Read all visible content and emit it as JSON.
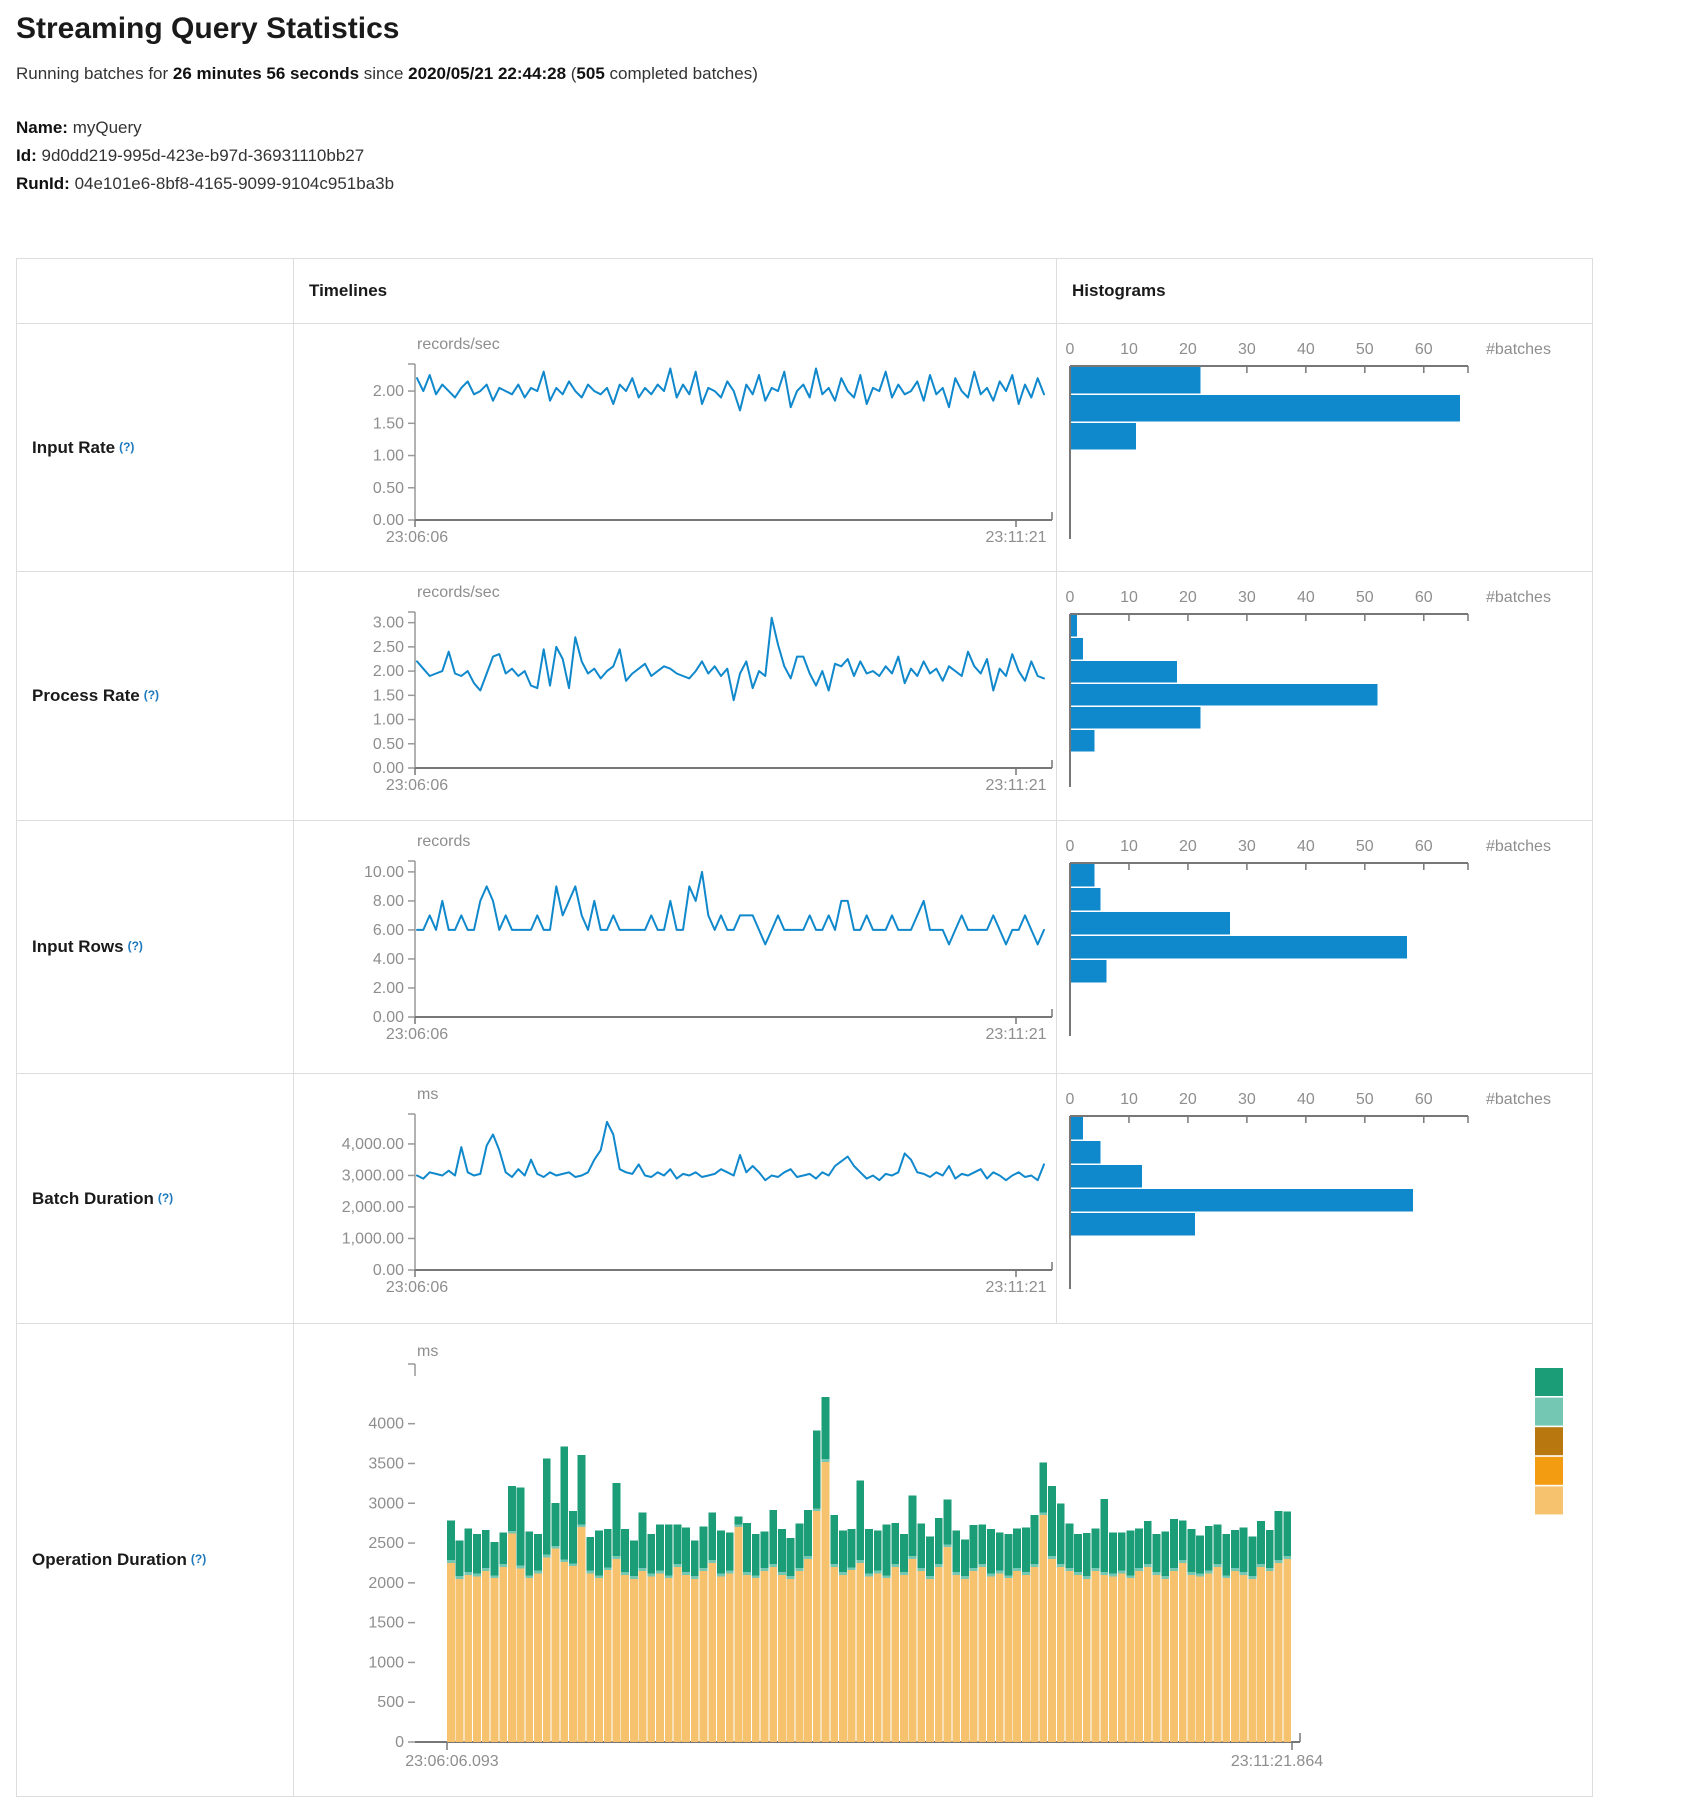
{
  "page": {
    "title": "Streaming Query Statistics"
  },
  "subtitle": {
    "prefix": "Running batches for ",
    "duration": "26 minutes 56 seconds",
    "mid": " since ",
    "start_time": "2020/05/21 22:44:28",
    "paren_open": " (",
    "batches_count": "505",
    "suffix": " completed batches)"
  },
  "meta": {
    "name_label": "Name:",
    "name": "myQuery",
    "id_label": "Id:",
    "id": "9d0dd219-995d-423e-b97d-36931110bb27",
    "runid_label": "RunId:",
    "runid": "04e101e6-8bf8-4165-9099-9104c951ba3b"
  },
  "table": {
    "col_timelines": "Timelines",
    "col_histograms": "Histograms",
    "help_marker": "(?)",
    "rows": [
      {
        "label": "Input Rate"
      },
      {
        "label": "Process Rate"
      },
      {
        "label": "Input Rows"
      },
      {
        "label": "Batch Duration"
      },
      {
        "label": "Operation Duration"
      }
    ]
  },
  "chart_data": [
    {
      "type": "line",
      "name": "input-rate-timeline",
      "unit": "records/sec",
      "x_start": "23:06:06",
      "x_end": "23:11:21",
      "ylim": [
        0,
        2.42
      ],
      "color": "#1088cc",
      "grid": false,
      "yticks": [
        {
          "v": 2,
          "label": "2.00"
        },
        {
          "v": 1.5,
          "label": "1.50"
        },
        {
          "v": 1,
          "label": "1.00"
        },
        {
          "v": 0.5,
          "label": "0.50"
        },
        {
          "v": 0,
          "label": "0.00"
        }
      ],
      "values": [
        2.2,
        2.0,
        2.25,
        1.95,
        2.1,
        2.0,
        1.9,
        2.05,
        2.15,
        1.95,
        2.0,
        2.1,
        1.85,
        2.05,
        2.0,
        1.95,
        2.1,
        1.9,
        2.05,
        2.0,
        2.3,
        1.85,
        2.05,
        1.95,
        2.15,
        2.0,
        1.9,
        2.1,
        2.0,
        1.95,
        2.05,
        1.8,
        2.1,
        2.0,
        2.2,
        1.9,
        2.05,
        1.95,
        2.1,
        2.0,
        2.35,
        1.9,
        2.1,
        1.95,
        2.3,
        1.8,
        2.05,
        2.0,
        1.9,
        2.15,
        2.0,
        1.7,
        2.1,
        1.95,
        2.25,
        1.85,
        2.05,
        2.0,
        2.3,
        1.75,
        2.0,
        2.1,
        1.9,
        2.35,
        1.95,
        2.05,
        1.85,
        2.2,
        2.0,
        1.9,
        2.25,
        1.8,
        2.05,
        2.0,
        2.3,
        1.9,
        2.1,
        1.95,
        2.0,
        2.15,
        1.85,
        2.25,
        1.95,
        2.05,
        1.75,
        2.2,
        2.0,
        1.9,
        2.3,
        1.95,
        2.05,
        1.85,
        2.15,
        2.0,
        2.25,
        1.8,
        2.1,
        1.9,
        2.2,
        1.95
      ]
    },
    {
      "type": "bar",
      "name": "input-rate-histogram",
      "orientation": "horizontal",
      "xlabel": "#batches",
      "xticks": [
        0,
        10,
        20,
        30,
        40,
        50,
        60
      ],
      "xlim": [
        0,
        67.5
      ],
      "color": "#1088cc",
      "bins": [
        22,
        66,
        11
      ]
    },
    {
      "type": "line",
      "name": "process-rate-timeline",
      "unit": "records/sec",
      "x_start": "23:06:06",
      "x_end": "23:11:21",
      "ylim": [
        0,
        3.22
      ],
      "color": "#1088cc",
      "grid": false,
      "yticks": [
        {
          "v": 3,
          "label": "3.00"
        },
        {
          "v": 2.5,
          "label": "2.50"
        },
        {
          "v": 2,
          "label": "2.00"
        },
        {
          "v": 1.5,
          "label": "1.50"
        },
        {
          "v": 1,
          "label": "1.00"
        },
        {
          "v": 0.5,
          "label": "0.50"
        },
        {
          "v": 0,
          "label": "0.00"
        }
      ],
      "values": [
        2.2,
        2.05,
        1.9,
        1.95,
        2.0,
        2.4,
        1.95,
        1.9,
        2.0,
        1.75,
        1.6,
        1.95,
        2.3,
        2.35,
        1.95,
        2.05,
        1.9,
        2.0,
        1.7,
        1.65,
        2.45,
        1.7,
        2.5,
        2.25,
        1.65,
        2.7,
        2.2,
        1.95,
        2.05,
        1.85,
        2.0,
        2.1,
        2.45,
        1.8,
        1.95,
        2.05,
        2.15,
        1.9,
        2.0,
        2.1,
        2.05,
        1.95,
        1.9,
        1.85,
        2.0,
        2.2,
        1.95,
        2.1,
        1.9,
        2.05,
        1.4,
        1.95,
        2.2,
        1.65,
        2.0,
        1.9,
        3.1,
        2.55,
        2.1,
        1.85,
        2.3,
        2.3,
        1.95,
        1.7,
        2.0,
        1.6,
        2.15,
        2.1,
        2.25,
        1.9,
        2.2,
        1.95,
        2.0,
        1.9,
        2.1,
        1.95,
        2.3,
        1.75,
        2.05,
        1.9,
        2.2,
        1.95,
        2.05,
        1.8,
        2.1,
        2.0,
        1.9,
        2.4,
        2.1,
        1.95,
        2.25,
        1.6,
        2.05,
        1.9,
        2.35,
        2.0,
        1.8,
        2.2,
        1.9,
        1.85
      ]
    },
    {
      "type": "bar",
      "name": "process-rate-histogram",
      "orientation": "horizontal",
      "xlabel": "#batches",
      "xticks": [
        0,
        10,
        20,
        30,
        40,
        50,
        60
      ],
      "xlim": [
        0,
        67.5
      ],
      "color": "#1088cc",
      "bins": [
        1,
        2,
        18,
        52,
        22,
        4
      ]
    },
    {
      "type": "line",
      "name": "input-rows-timeline",
      "unit": "records",
      "x_start": "23:06:06",
      "x_end": "23:11:21",
      "ylim": [
        0,
        10.75
      ],
      "color": "#1088cc",
      "grid": false,
      "yticks": [
        {
          "v": 10,
          "label": "10.00"
        },
        {
          "v": 8,
          "label": "8.00"
        },
        {
          "v": 6,
          "label": "6.00"
        },
        {
          "v": 4,
          "label": "4.00"
        },
        {
          "v": 2,
          "label": "2.00"
        },
        {
          "v": 0,
          "label": "0.00"
        }
      ],
      "values": [
        6,
        6,
        7,
        6,
        8,
        6,
        6,
        7,
        6,
        6,
        8,
        9,
        8,
        6,
        7,
        6,
        6,
        6,
        6,
        7,
        6,
        6,
        9,
        7,
        8,
        9,
        7,
        6,
        8,
        6,
        6,
        7,
        6,
        6,
        6,
        6,
        6,
        7,
        6,
        6,
        8,
        6,
        6,
        9,
        8,
        10,
        7,
        6,
        7,
        6,
        6,
        7,
        7,
        7,
        6,
        5,
        6,
        7,
        6,
        6,
        6,
        6,
        7,
        6,
        6,
        7,
        6,
        8,
        8,
        6,
        6,
        7,
        6,
        6,
        6,
        7,
        6,
        6,
        6,
        7,
        8,
        6,
        6,
        6,
        5,
        6,
        7,
        6,
        6,
        6,
        6,
        7,
        6,
        5,
        6,
        6,
        7,
        6,
        5,
        6
      ]
    },
    {
      "type": "bar",
      "name": "input-rows-histogram",
      "orientation": "horizontal",
      "xlabel": "#batches",
      "xticks": [
        0,
        10,
        20,
        30,
        40,
        50,
        60
      ],
      "xlim": [
        0,
        67.5
      ],
      "color": "#1088cc",
      "bins": [
        4,
        5,
        27,
        57,
        6
      ]
    },
    {
      "type": "line",
      "name": "batch-duration-timeline",
      "unit": "ms",
      "x_start": "23:06:06",
      "x_end": "23:11:21",
      "ylim": [
        0,
        4950
      ],
      "color": "#1088cc",
      "grid": false,
      "yticks": [
        {
          "v": 4000,
          "label": "4,000.00"
        },
        {
          "v": 3000,
          "label": "3,000.00"
        },
        {
          "v": 2000,
          "label": "2,000.00"
        },
        {
          "v": 1000,
          "label": "1,000.00"
        },
        {
          "v": 0,
          "label": "0.00"
        }
      ],
      "values": [
        3000,
        2900,
        3100,
        3050,
        3000,
        3150,
        3000,
        3900,
        3100,
        3000,
        3050,
        3950,
        4300,
        3800,
        3100,
        2950,
        3200,
        3000,
        3500,
        3050,
        2950,
        3100,
        3000,
        3050,
        3100,
        2950,
        3000,
        3100,
        3500,
        3800,
        4700,
        4300,
        3200,
        3100,
        3050,
        3350,
        3000,
        2950,
        3100,
        3000,
        3200,
        2900,
        3050,
        3000,
        3100,
        2950,
        3000,
        3050,
        3200,
        3100,
        3000,
        3650,
        3100,
        3300,
        3100,
        2850,
        3000,
        2950,
        3100,
        3200,
        2950,
        3000,
        3050,
        2900,
        3100,
        3000,
        3300,
        3450,
        3600,
        3300,
        3100,
        2900,
        3000,
        2850,
        3050,
        3000,
        3100,
        3700,
        3500,
        3100,
        3050,
        2950,
        3100,
        3000,
        3300,
        2900,
        3050,
        3000,
        3100,
        3200,
        2900,
        3100,
        3000,
        2850,
        3000,
        3100,
        2950,
        3000,
        2850,
        3350
      ]
    },
    {
      "type": "bar",
      "name": "batch-duration-histogram",
      "orientation": "horizontal",
      "xlabel": "#batches",
      "xticks": [
        0,
        10,
        20,
        30,
        40,
        50,
        60
      ],
      "xlim": [
        0,
        67.5
      ],
      "color": "#1088cc",
      "bins": [
        2,
        5,
        12,
        58,
        21
      ]
    },
    {
      "type": "stacked-bar",
      "name": "operation-duration-stacked",
      "unit": "ms",
      "x_start": "23:06:06.093",
      "x_end": "23:11:21.864",
      "ylim": [
        0,
        4750
      ],
      "yticks": [
        {
          "v": 4000,
          "label": "4000"
        },
        {
          "v": 3500,
          "label": "3500"
        },
        {
          "v": 3000,
          "label": "3000"
        },
        {
          "v": 2500,
          "label": "2500"
        },
        {
          "v": 2000,
          "label": "2000"
        },
        {
          "v": 1500,
          "label": "1500"
        },
        {
          "v": 1000,
          "label": "1000"
        },
        {
          "v": 500,
          "label": "500"
        },
        {
          "v": 0,
          "label": "0"
        }
      ],
      "series_colors": {
        "base": "#f6c26e",
        "sliver": "#74c7b2",
        "top": "#1b9e77"
      },
      "sliver_value": 35,
      "legend_colors": [
        "#1b9e77",
        "#74c7b2",
        "#b8770f",
        "#f39c12",
        "#f6c26e"
      ],
      "base": [
        2250,
        2050,
        2100,
        2080,
        2150,
        2060,
        2200,
        2620,
        2180,
        2060,
        2120,
        2320,
        2430,
        2260,
        2210,
        2700,
        2120,
        2060,
        2160,
        2300,
        2100,
        2050,
        2150,
        2080,
        2120,
        2060,
        2200,
        2100,
        2050,
        2150,
        2250,
        2080,
        2120,
        2700,
        2100,
        2060,
        2150,
        2200,
        2100,
        2050,
        2150,
        2300,
        2900,
        3520,
        2200,
        2100,
        2160,
        2250,
        2080,
        2120,
        2060,
        2200,
        2100,
        2300,
        2150,
        2050,
        2200,
        2450,
        2100,
        2050,
        2150,
        2200,
        2080,
        2120,
        2060,
        2150,
        2100,
        2200,
        2850,
        2300,
        2200,
        2150,
        2100,
        2050,
        2150,
        2100,
        2080,
        2120,
        2060,
        2150,
        2200,
        2100,
        2050,
        2150,
        2250,
        2100,
        2080,
        2120,
        2200,
        2060,
        2150,
        2100,
        2050,
        2200,
        2150,
        2250,
        2300
      ],
      "top": [
        500,
        450,
        550,
        500,
        480,
        420,
        400,
        560,
        980,
        550,
        460,
        1210,
        540,
        1420,
        660,
        870,
        420,
        560,
        480,
        920,
        540,
        450,
        700,
        500,
        580,
        640,
        500,
        560,
        450,
        520,
        600,
        540,
        480,
        100,
        620,
        520,
        460,
        680,
        540,
        480,
        560,
        580,
        980,
        780,
        620,
        520,
        480,
        1000,
        560,
        500,
        640,
        520,
        480,
        760,
        560,
        500,
        580,
        560,
        520,
        460,
        540,
        500,
        560,
        480,
        520,
        500,
        560,
        620,
        630,
        880,
        760,
        560,
        480,
        540,
        500,
        920,
        520,
        480,
        560,
        500,
        540,
        480,
        560,
        620,
        500,
        540,
        480,
        560,
        500,
        520,
        480,
        560,
        500,
        540,
        480,
        620,
        560
      ]
    }
  ]
}
